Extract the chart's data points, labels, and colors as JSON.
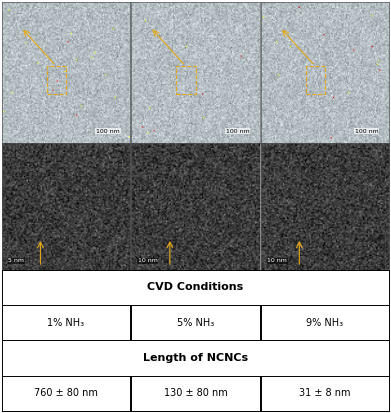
{
  "table_header1": "CVD Conditions",
  "table_header2": "Length of NCNCs",
  "col_labels": [
    "1% NH₃",
    "5% NH₃",
    "9% NH₃"
  ],
  "lengths": [
    "760 ± 80 nm",
    "130 ± 80 nm",
    "31 ± 8 nm"
  ],
  "scale_bars_top": [
    "100 nm",
    "100 nm",
    "100 nm"
  ],
  "scale_bars_bottom": [
    "5 nm",
    "10 nm",
    "10 nm"
  ],
  "top_img_bg": "#b8d4d8",
  "bottom_img_bg": "#404040",
  "table_bg": "#ffffff",
  "border_color": "#555555",
  "arrow_color": "#e6a817",
  "box_color": "#e6a817",
  "fig_width": 3.91,
  "fig_height": 4.13,
  "dpi": 100
}
